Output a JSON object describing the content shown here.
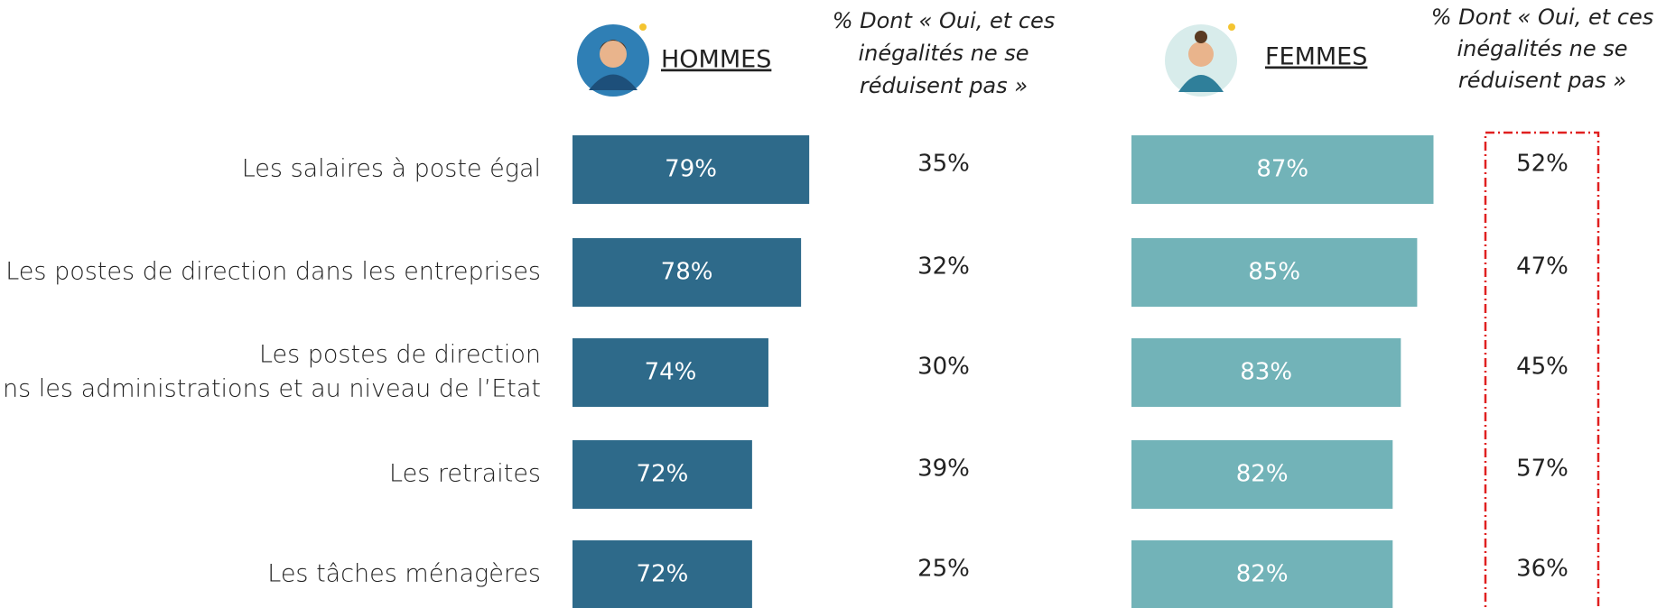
{
  "chart_data": [
    {
      "type": "bar",
      "title": "HOMMES",
      "categories": [
        "Les salaires à poste égal",
        "Les postes de direction dans les entreprises",
        [
          "Les postes de direction",
          "dans les administrations et au niveau de l’Etat"
        ],
        "Les retraites",
        "Les tâches ménagères"
      ],
      "values": [
        79,
        78,
        74,
        72,
        72
      ],
      "value_labels": [
        "79%",
        "78%",
        "74%",
        "72%",
        "72%"
      ],
      "color": "#2e6a8a",
      "xlim": [
        50,
        100
      ],
      "sub_column": {
        "title": [
          "% Dont « Oui, et ces",
          "inégalités ne se",
          "réduisent pas »"
        ],
        "values": [
          35,
          32,
          30,
          39,
          25
        ],
        "value_labels": [
          "35%",
          "32%",
          "30%",
          "39%",
          "25%"
        ]
      }
    },
    {
      "type": "bar",
      "title": "FEMMES",
      "values": [
        87,
        85,
        83,
        82,
        82
      ],
      "value_labels": [
        "87%",
        "85%",
        "83%",
        "82%",
        "82%"
      ],
      "color": "#72b3b8",
      "xlim": [
        50,
        100
      ],
      "sub_column": {
        "title": [
          "% Dont « Oui, et ces",
          "inégalités ne se",
          "réduisent pas »"
        ],
        "values": [
          52,
          47,
          45,
          57,
          36
        ],
        "value_labels": [
          "52%",
          "47%",
          "45%",
          "57%",
          "36%"
        ]
      }
    }
  ]
}
